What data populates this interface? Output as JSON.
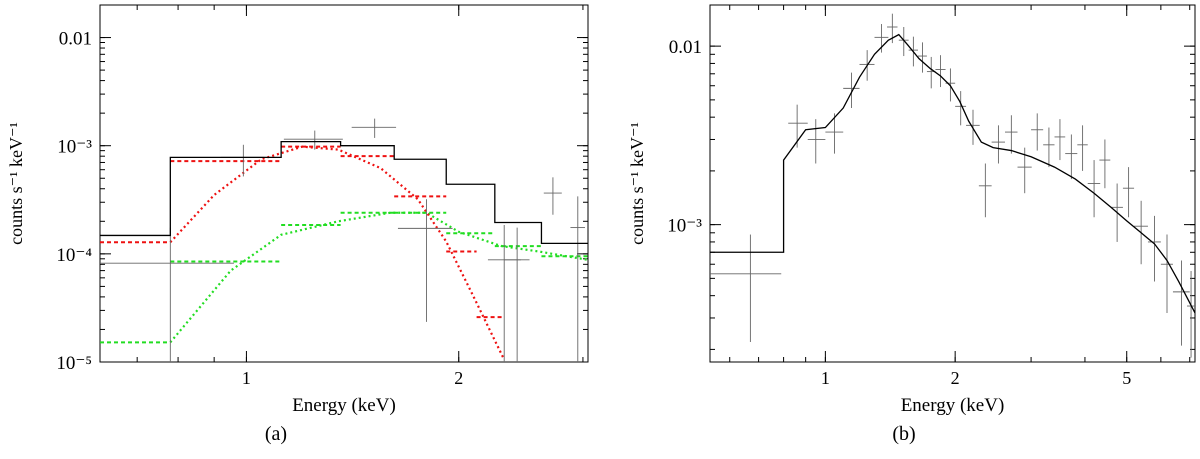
{
  "chart_data": [
    {
      "type": "step-spectrum",
      "panel_label": "(a)",
      "xlabel": "Energy (keV)",
      "ylabel": "counts s⁻¹ keV⁻¹",
      "xscale": "log",
      "yscale": "log",
      "xlim": [
        0.62,
        3.05
      ],
      "ylim": [
        1e-05,
        0.02
      ],
      "x_ticks": [
        {
          "value": 1,
          "label": "1"
        },
        {
          "value": 2,
          "label": "2"
        }
      ],
      "y_ticks": [
        {
          "value": 0.01,
          "label": "0.01"
        },
        {
          "value": 0.001,
          "label": "10⁻³"
        },
        {
          "value": 0.0001,
          "label": "10⁻⁴"
        },
        {
          "value": 1e-05,
          "label": "10⁻⁵"
        }
      ],
      "model_total": {
        "color": "#000000",
        "edges": [
          0.62,
          0.78,
          1.12,
          1.36,
          1.62,
          1.92,
          2.25,
          2.62,
          3.05
        ],
        "values": [
          0.000148,
          0.00078,
          0.00109,
          0.001,
          0.00075,
          0.00044,
          0.000195,
          0.000125
        ]
      },
      "component_red": {
        "color": "#ee1111",
        "steps": [
          {
            "lo": 0.62,
            "hi": 0.78,
            "y": 0.000128
          },
          {
            "lo": 0.78,
            "hi": 1.12,
            "y": 0.00072
          },
          {
            "lo": 1.12,
            "hi": 1.36,
            "y": 0.00098
          },
          {
            "lo": 1.36,
            "hi": 1.62,
            "y": 0.0008
          },
          {
            "lo": 1.62,
            "hi": 1.92,
            "y": 0.00034
          },
          {
            "lo": 1.92,
            "hi": 2.12,
            "y": 0.000105
          },
          {
            "lo": 2.12,
            "hi": 2.32,
            "y": 2.6e-05
          }
        ],
        "curve": [
          [
            0.78,
            0.000128
          ],
          [
            0.9,
            0.00035
          ],
          [
            1.05,
            0.00075
          ],
          [
            1.2,
            0.00098
          ],
          [
            1.35,
            0.00092
          ],
          [
            1.55,
            0.00062
          ],
          [
            1.75,
            0.00032
          ],
          [
            1.92,
            0.00013
          ],
          [
            2.1,
            4e-05
          ],
          [
            2.32,
            1.05e-05
          ]
        ]
      },
      "component_green": {
        "color": "#22dd22",
        "steps": [
          {
            "lo": 0.62,
            "hi": 0.78,
            "y": 1.52e-05
          },
          {
            "lo": 0.78,
            "hi": 1.12,
            "y": 8.5e-05
          },
          {
            "lo": 1.12,
            "hi": 1.36,
            "y": 0.000185
          },
          {
            "lo": 1.36,
            "hi": 1.62,
            "y": 0.00024
          },
          {
            "lo": 1.62,
            "hi": 1.92,
            "y": 0.00024
          },
          {
            "lo": 1.92,
            "hi": 2.25,
            "y": 0.000155
          },
          {
            "lo": 2.25,
            "hi": 2.62,
            "y": 0.000118
          },
          {
            "lo": 2.62,
            "hi": 3.05,
            "y": 9.5e-05
          }
        ],
        "curve": [
          [
            0.78,
            1.52e-05
          ],
          [
            0.95,
            7e-05
          ],
          [
            1.12,
            0.00015
          ],
          [
            1.35,
            0.0002
          ],
          [
            1.6,
            0.00024
          ],
          [
            1.8,
            0.00024
          ],
          [
            2.0,
            0.00016
          ],
          [
            2.3,
            0.000118
          ],
          [
            2.6,
            0.000105
          ],
          [
            3.05,
            8.8e-05
          ]
        ]
      },
      "data_points": [
        {
          "x": 0.78,
          "xlo": 0.62,
          "xhi": 0.96,
          "y": 8.2e-05,
          "ylo": 1.02e-05,
          "yhi": 0.000175
        },
        {
          "x": 0.99,
          "xlo": 0.92,
          "xhi": 1.06,
          "y": 0.00078,
          "ylo": 0.00052,
          "yhi": 0.00102
        },
        {
          "x": 1.25,
          "xlo": 1.13,
          "xhi": 1.37,
          "y": 0.00115,
          "ylo": 0.00092,
          "yhi": 0.00138
        },
        {
          "x": 1.52,
          "xlo": 1.41,
          "xhi": 1.63,
          "y": 0.00148,
          "ylo": 0.00118,
          "yhi": 0.00178
        },
        {
          "x": 1.8,
          "xlo": 1.64,
          "xhi": 1.96,
          "y": 0.000172,
          "ylo": 2.35e-05,
          "yhi": 0.00032
        },
        {
          "x": 2.32,
          "xlo": 2.2,
          "xhi": 2.45,
          "y": 8.8e-05,
          "ylo": 1.02e-05,
          "yhi": 0.000185
        },
        {
          "x": 2.42,
          "xlo": 2.32,
          "xhi": 2.52,
          "y": 8.8e-05,
          "ylo": 1.02e-05,
          "yhi": 0.000175
        },
        {
          "x": 2.72,
          "xlo": 2.64,
          "xhi": 2.8,
          "y": 0.000365,
          "ylo": 0.00023,
          "yhi": 0.00051
        },
        {
          "x": 2.95,
          "xlo": 2.88,
          "xhi": 3.02,
          "y": 0.000175,
          "ylo": 1.02e-05,
          "yhi": 0.00034
        }
      ]
    },
    {
      "type": "step-spectrum",
      "panel_label": "(b)",
      "xlabel": "Energy (keV)",
      "ylabel": "counts s⁻¹ keV⁻¹",
      "xscale": "log",
      "yscale": "log",
      "xlim": [
        0.54,
        7.2
      ],
      "ylim": [
        0.00017,
        0.017
      ],
      "x_ticks": [
        {
          "value": 1,
          "label": "1"
        },
        {
          "value": 2,
          "label": "2"
        },
        {
          "value": 5,
          "label": "5"
        }
      ],
      "y_ticks": [
        {
          "value": 0.01,
          "label": "0.01"
        },
        {
          "value": 0.001,
          "label": "10⁻³"
        }
      ],
      "model_total": {
        "color": "#000000",
        "curve": [
          [
            0.54,
            0.0007
          ],
          [
            0.8,
            0.0007
          ],
          [
            0.8,
            0.0023
          ],
          [
            0.9,
            0.0034
          ],
          [
            1.0,
            0.0035
          ],
          [
            1.1,
            0.0045
          ],
          [
            1.2,
            0.0067
          ],
          [
            1.3,
            0.009
          ],
          [
            1.4,
            0.0108
          ],
          [
            1.48,
            0.0116
          ],
          [
            1.55,
            0.0102
          ],
          [
            1.65,
            0.0085
          ],
          [
            1.75,
            0.0075
          ],
          [
            1.85,
            0.0068
          ],
          [
            1.95,
            0.006
          ],
          [
            2.05,
            0.0049
          ],
          [
            2.15,
            0.0038
          ],
          [
            2.3,
            0.0029
          ],
          [
            2.45,
            0.0027
          ],
          [
            2.7,
            0.0026
          ],
          [
            3.0,
            0.0024
          ],
          [
            3.4,
            0.0021
          ],
          [
            3.8,
            0.0018
          ],
          [
            4.2,
            0.0015
          ],
          [
            4.6,
            0.00125
          ],
          [
            5.0,
            0.00105
          ],
          [
            5.4,
            0.0009
          ],
          [
            5.8,
            0.00078
          ],
          [
            6.2,
            0.00063
          ],
          [
            6.6,
            0.00048
          ],
          [
            7.2,
            0.00032
          ]
        ]
      },
      "data_points": [
        {
          "x": 0.67,
          "xlo": 0.54,
          "xhi": 0.79,
          "y": 0.00053,
          "ylo": 0.00022,
          "yhi": 0.00088
        },
        {
          "x": 0.86,
          "xlo": 0.82,
          "xhi": 0.91,
          "y": 0.0037,
          "ylo": 0.0027,
          "yhi": 0.0047
        },
        {
          "x": 0.95,
          "xlo": 0.91,
          "xhi": 1.0,
          "y": 0.003,
          "ylo": 0.0022,
          "yhi": 0.0039
        },
        {
          "x": 1.05,
          "xlo": 1.0,
          "xhi": 1.1,
          "y": 0.0033,
          "ylo": 0.0025,
          "yhi": 0.0042
        },
        {
          "x": 1.15,
          "xlo": 1.1,
          "xhi": 1.2,
          "y": 0.0058,
          "ylo": 0.0045,
          "yhi": 0.0071
        },
        {
          "x": 1.25,
          "xlo": 1.2,
          "xhi": 1.3,
          "y": 0.0079,
          "ylo": 0.0064,
          "yhi": 0.0095
        },
        {
          "x": 1.35,
          "xlo": 1.3,
          "xhi": 1.4,
          "y": 0.0112,
          "ylo": 0.0092,
          "yhi": 0.0133
        },
        {
          "x": 1.43,
          "xlo": 1.39,
          "xhi": 1.47,
          "y": 0.0128,
          "ylo": 0.0104,
          "yhi": 0.0152
        },
        {
          "x": 1.52,
          "xlo": 1.48,
          "xhi": 1.56,
          "y": 0.0108,
          "ylo": 0.0088,
          "yhi": 0.0128
        },
        {
          "x": 1.6,
          "xlo": 1.56,
          "xhi": 1.64,
          "y": 0.0095,
          "ylo": 0.0077,
          "yhi": 0.0113
        },
        {
          "x": 1.68,
          "xlo": 1.64,
          "xhi": 1.72,
          "y": 0.0088,
          "ylo": 0.0071,
          "yhi": 0.0105
        },
        {
          "x": 1.76,
          "xlo": 1.72,
          "xhi": 1.8,
          "y": 0.0072,
          "ylo": 0.0058,
          "yhi": 0.0087
        },
        {
          "x": 1.85,
          "xlo": 1.8,
          "xhi": 1.9,
          "y": 0.0074,
          "ylo": 0.0059,
          "yhi": 0.0089
        },
        {
          "x": 1.95,
          "xlo": 1.9,
          "xhi": 2.0,
          "y": 0.0062,
          "ylo": 0.0049,
          "yhi": 0.0075
        },
        {
          "x": 2.06,
          "xlo": 2.0,
          "xhi": 2.12,
          "y": 0.0046,
          "ylo": 0.0036,
          "yhi": 0.0056
        },
        {
          "x": 2.2,
          "xlo": 2.12,
          "xhi": 2.28,
          "y": 0.0036,
          "ylo": 0.0028,
          "yhi": 0.0044
        },
        {
          "x": 2.35,
          "xlo": 2.27,
          "xhi": 2.43,
          "y": 0.00165,
          "ylo": 0.0011,
          "yhi": 0.0022
        },
        {
          "x": 2.52,
          "xlo": 2.43,
          "xhi": 2.61,
          "y": 0.0029,
          "ylo": 0.0022,
          "yhi": 0.0036
        },
        {
          "x": 2.7,
          "xlo": 2.61,
          "xhi": 2.79,
          "y": 0.0033,
          "ylo": 0.0025,
          "yhi": 0.0041
        },
        {
          "x": 2.9,
          "xlo": 2.79,
          "xhi": 3.01,
          "y": 0.0021,
          "ylo": 0.0015,
          "yhi": 0.0027
        },
        {
          "x": 3.1,
          "xlo": 3.0,
          "xhi": 3.2,
          "y": 0.0034,
          "ylo": 0.0026,
          "yhi": 0.0042
        },
        {
          "x": 3.3,
          "xlo": 3.2,
          "xhi": 3.4,
          "y": 0.0028,
          "ylo": 0.0021,
          "yhi": 0.0035
        },
        {
          "x": 3.5,
          "xlo": 3.4,
          "xhi": 3.6,
          "y": 0.0031,
          "ylo": 0.0023,
          "yhi": 0.0039
        },
        {
          "x": 3.72,
          "xlo": 3.6,
          "xhi": 3.84,
          "y": 0.0025,
          "ylo": 0.0018,
          "yhi": 0.0032
        },
        {
          "x": 3.95,
          "xlo": 3.84,
          "xhi": 4.06,
          "y": 0.0028,
          "ylo": 0.002,
          "yhi": 0.0036
        },
        {
          "x": 4.2,
          "xlo": 4.06,
          "xhi": 4.34,
          "y": 0.0017,
          "ylo": 0.0011,
          "yhi": 0.0023
        },
        {
          "x": 4.45,
          "xlo": 4.32,
          "xhi": 4.58,
          "y": 0.0023,
          "ylo": 0.0016,
          "yhi": 0.003
        },
        {
          "x": 4.75,
          "xlo": 4.6,
          "xhi": 4.9,
          "y": 0.00125,
          "ylo": 0.0008,
          "yhi": 0.0017
        },
        {
          "x": 5.05,
          "xlo": 4.9,
          "xhi": 5.2,
          "y": 0.0016,
          "ylo": 0.0011,
          "yhi": 0.0021
        },
        {
          "x": 5.4,
          "xlo": 5.2,
          "xhi": 5.6,
          "y": 0.00098,
          "ylo": 0.0006,
          "yhi": 0.00136
        },
        {
          "x": 5.8,
          "xlo": 5.6,
          "xhi": 6.0,
          "y": 0.0008,
          "ylo": 0.00048,
          "yhi": 0.00112
        },
        {
          "x": 6.2,
          "xlo": 6.0,
          "xhi": 6.4,
          "y": 0.0006,
          "ylo": 0.00032,
          "yhi": 0.00088
        },
        {
          "x": 6.7,
          "xlo": 6.4,
          "xhi": 7.0,
          "y": 0.00042,
          "ylo": 0.00021,
          "yhi": 0.00063
        },
        {
          "x": 7.05,
          "xlo": 6.9,
          "xhi": 7.2,
          "y": 0.00035,
          "ylo": 0.00018,
          "yhi": 0.00055
        }
      ]
    }
  ]
}
